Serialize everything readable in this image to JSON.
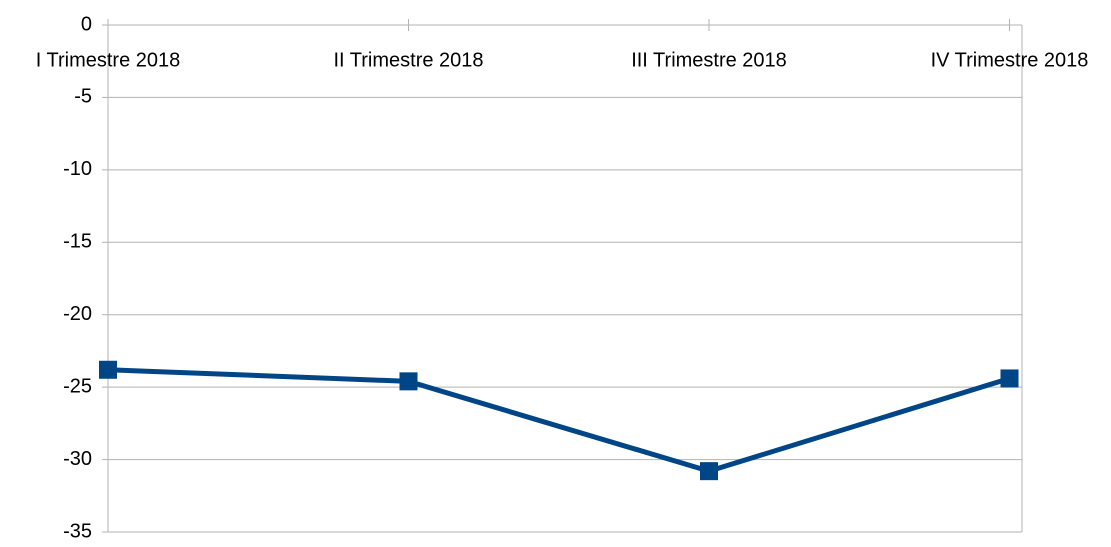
{
  "chart_data": {
    "type": "line",
    "categories": [
      "I Trimestre 2018",
      "II Trimestre 2018",
      "III Trimestre 2018",
      "IV Trimestre 2018"
    ],
    "series": [
      {
        "color": "#004586",
        "values": [
          -23.8,
          -24.6,
          -30.8,
          -24.4
        ]
      }
    ],
    "ylim": [
      -35,
      0
    ],
    "yticks": [
      0,
      -5,
      -10,
      -15,
      -20,
      -25,
      -30,
      -35
    ],
    "grid": true
  }
}
